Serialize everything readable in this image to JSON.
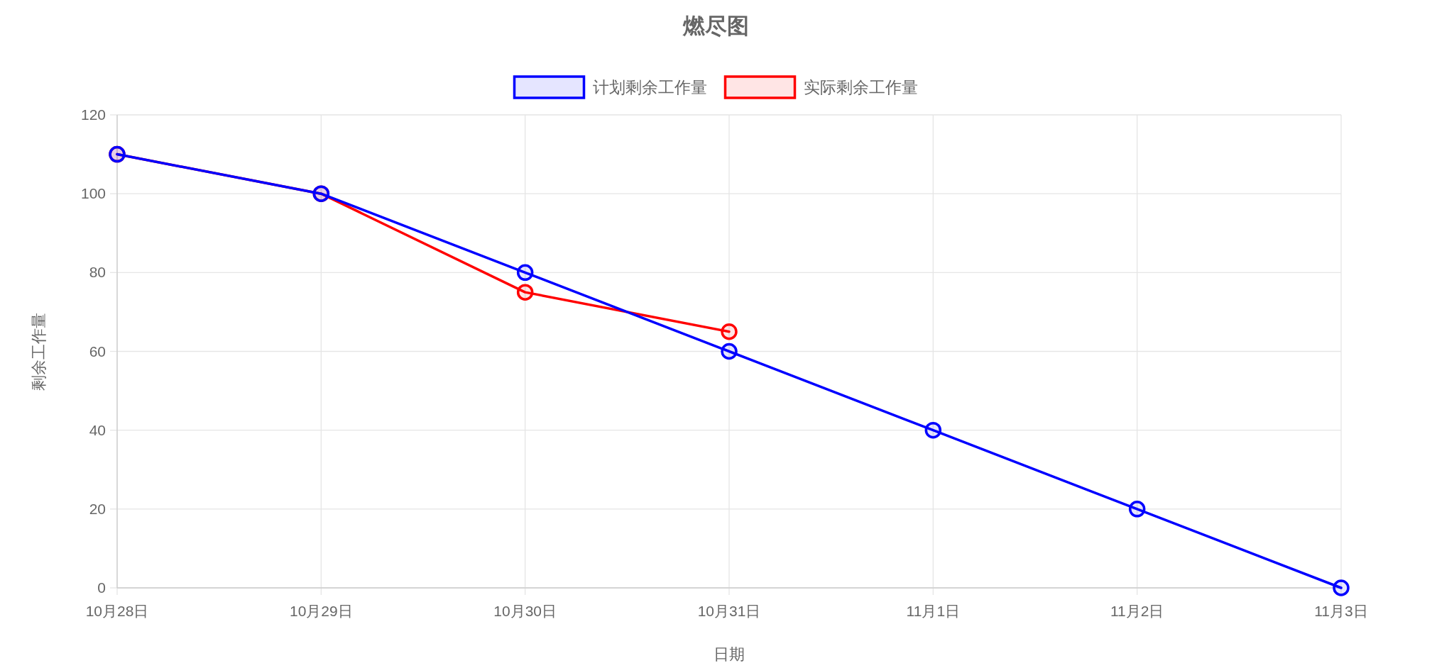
{
  "chart_data": {
    "type": "line",
    "title": "燃尽图",
    "xlabel": "日期",
    "ylabel": "剩余工作量",
    "categories": [
      "10月28日",
      "10月29日",
      "10月30日",
      "10月31日",
      "11月1日",
      "11月2日",
      "11月3日"
    ],
    "series": [
      {
        "name": "计划剩余工作量",
        "color": "#0000ff",
        "values": [
          110,
          100,
          80,
          60,
          40,
          20,
          0
        ]
      },
      {
        "name": "实际剩余工作量",
        "color": "#ff0000",
        "values": [
          110,
          100,
          75,
          65,
          null,
          null,
          null
        ]
      }
    ],
    "ylim": [
      0,
      120
    ],
    "yticks": [
      0,
      20,
      40,
      60,
      80,
      100,
      120
    ],
    "grid": true,
    "legend": "top",
    "marker": "circle",
    "line_style": "solid"
  }
}
